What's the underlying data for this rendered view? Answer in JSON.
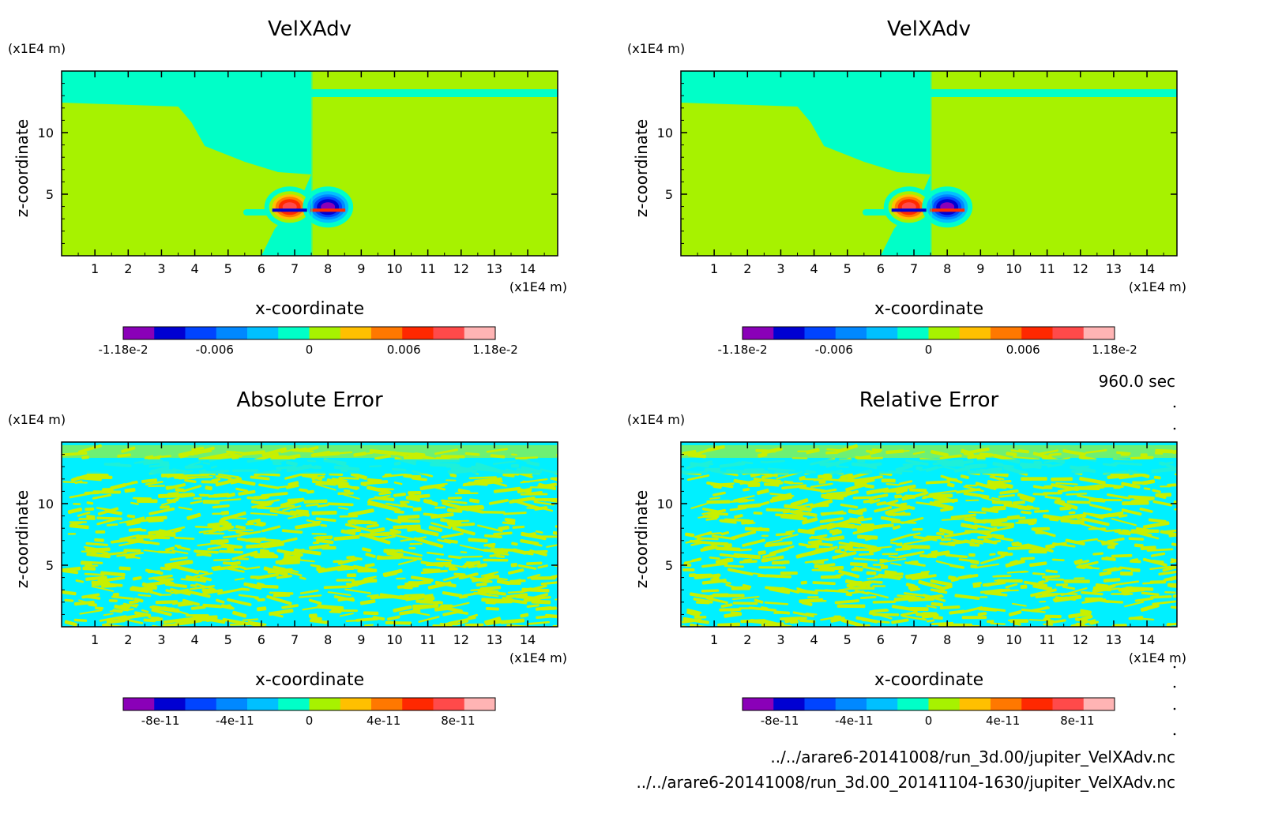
{
  "time_label": "960.0 sec",
  "footer": {
    "file1": "../../arare6-20141008/run_3d.00/jupiter_VelXAdv.nc",
    "file2": "../../arare6-20141008/run_3d.00_20141104-1630/jupiter_VelXAdv.nc"
  },
  "colors": {
    "field_green": "#a7f200",
    "field_teal": "#00ffc8",
    "error_cyan": "#00f0ff",
    "error_yellow": "#c8f000",
    "palette": [
      "#8a00b8",
      "#0000d2",
      "#0044ff",
      "#0088ff",
      "#00c0ff",
      "#00ffc8",
      "#a7f200",
      "#ffc000",
      "#ff7800",
      "#ff2800",
      "#ff4a4a",
      "#ffb4b4"
    ]
  },
  "chart_data": [
    {
      "id": "velx-1",
      "type": "heatmap",
      "title": "VelXAdv",
      "xlabel": "x-coordinate",
      "ylabel": "z-coordinate",
      "x_unit": "(x1E4 m)",
      "z_unit": "(x1E4 m)",
      "xlim": [
        0,
        14.9
      ],
      "zlim": [
        0,
        15
      ],
      "x_ticks": [
        "1",
        "2",
        "3",
        "4",
        "5",
        "6",
        "7",
        "8",
        "9",
        "10",
        "11",
        "12",
        "13",
        "14"
      ],
      "z_ticks": [
        "5",
        "10"
      ],
      "colorbar": {
        "ticks": [
          "-1.18e-2",
          "-0.006",
          "0",
          "0.006",
          "1.18e-2"
        ],
        "range": [
          -0.0118,
          0.0118
        ]
      },
      "field_kind": "velocity"
    },
    {
      "id": "velx-2",
      "type": "heatmap",
      "title": "VelXAdv",
      "xlabel": "x-coordinate",
      "ylabel": "z-coordinate",
      "x_unit": "(x1E4 m)",
      "z_unit": "(x1E4 m)",
      "xlim": [
        0,
        14.9
      ],
      "zlim": [
        0,
        15
      ],
      "x_ticks": [
        "1",
        "2",
        "3",
        "4",
        "5",
        "6",
        "7",
        "8",
        "9",
        "10",
        "11",
        "12",
        "13",
        "14"
      ],
      "z_ticks": [
        "5",
        "10"
      ],
      "colorbar": {
        "ticks": [
          "-1.18e-2",
          "-0.006",
          "0",
          "0.006",
          "1.18e-2"
        ],
        "range": [
          -0.0118,
          0.0118
        ]
      },
      "field_kind": "velocity"
    },
    {
      "id": "abs-err",
      "type": "heatmap",
      "title": "Absolute Error",
      "xlabel": "x-coordinate",
      "ylabel": "z-coordinate",
      "x_unit": "(x1E4 m)",
      "z_unit": "(x1E4 m)",
      "xlim": [
        0,
        14.9
      ],
      "zlim": [
        0,
        15
      ],
      "x_ticks": [
        "1",
        "2",
        "3",
        "4",
        "5",
        "6",
        "7",
        "8",
        "9",
        "10",
        "11",
        "12",
        "13",
        "14"
      ],
      "z_ticks": [
        "5",
        "10"
      ],
      "colorbar": {
        "ticks": [
          "-8e-11",
          "-4e-11",
          "0",
          "4e-11",
          "8e-11"
        ],
        "range": [
          -1e-10,
          1e-10
        ]
      },
      "field_kind": "error"
    },
    {
      "id": "rel-err",
      "type": "heatmap",
      "title": "Relative Error",
      "xlabel": "x-coordinate",
      "ylabel": "z-coordinate",
      "x_unit": "(x1E4 m)",
      "z_unit": "(x1E4 m)",
      "xlim": [
        0,
        14.9
      ],
      "zlim": [
        0,
        15
      ],
      "x_ticks": [
        "1",
        "2",
        "3",
        "4",
        "5",
        "6",
        "7",
        "8",
        "9",
        "10",
        "11",
        "12",
        "13",
        "14"
      ],
      "z_ticks": [
        "5",
        "10"
      ],
      "colorbar": {
        "ticks": [
          "-8e-11",
          "-4e-11",
          "0",
          "4e-11",
          "8e-11"
        ],
        "range": [
          -1e-10,
          1e-10
        ]
      },
      "field_kind": "error"
    }
  ]
}
